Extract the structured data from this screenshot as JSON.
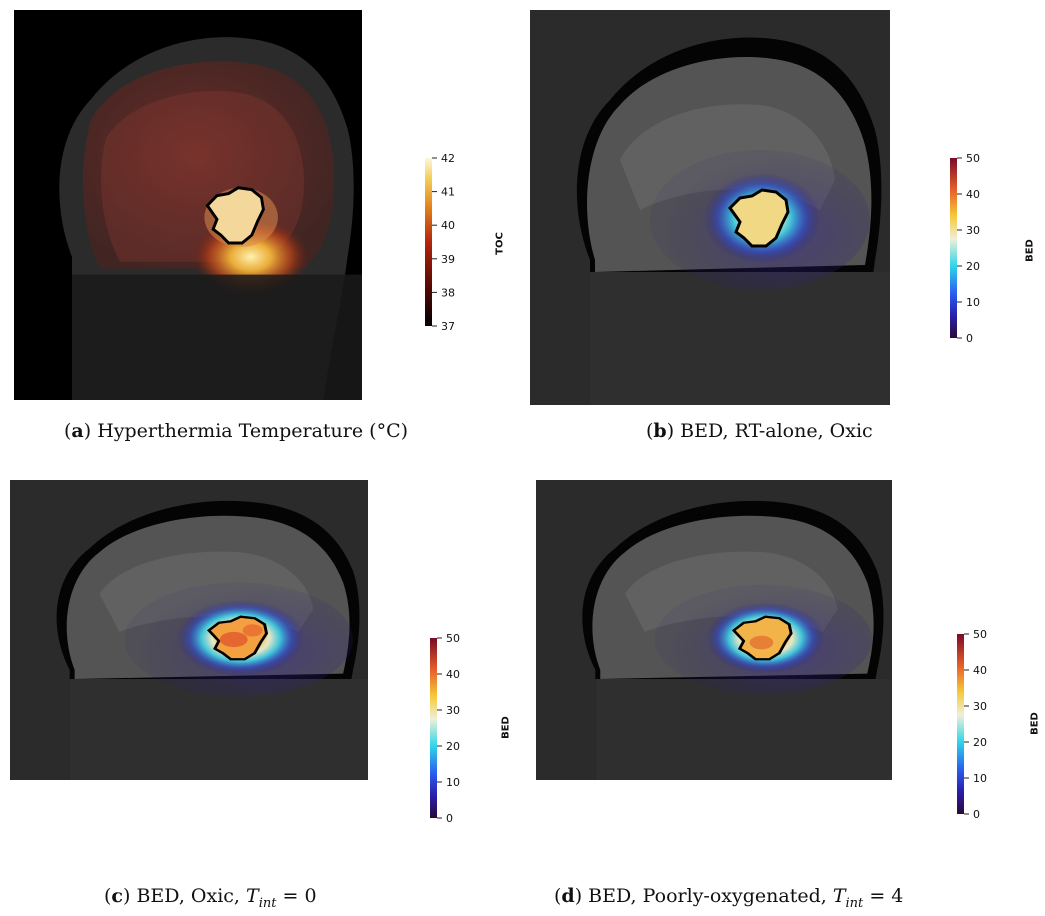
{
  "panels": [
    {
      "id": "a",
      "caption_letter": "a",
      "caption_text": "Hyperthermia Temperature (°C)",
      "colorbar": {
        "title": "TOC",
        "ticks": [
          "42",
          "41",
          "40",
          "39",
          "38",
          "37"
        ],
        "palette": "black-body",
        "range": [
          37,
          42
        ]
      },
      "background": "#000000"
    },
    {
      "id": "b",
      "caption_letter": "b",
      "caption_text": "BED, RT-alone, Oxic",
      "colorbar": {
        "title": "BED",
        "ticks": [
          "50",
          "40",
          "30",
          "20",
          "10",
          "0"
        ],
        "palette": "jet-like",
        "range": [
          0,
          50
        ]
      },
      "background": "#2b2b2b"
    },
    {
      "id": "c",
      "caption_letter": "c",
      "caption_text_pre": "BED, Oxic, ",
      "caption_math_var": "T",
      "caption_math_sub": "int",
      "caption_math_rest": " = 0",
      "colorbar": {
        "title": "BED",
        "ticks": [
          "50",
          "40",
          "30",
          "20",
          "10",
          "0"
        ],
        "palette": "jet-like",
        "range": [
          0,
          50
        ]
      },
      "background": "#2b2b2b"
    },
    {
      "id": "d",
      "caption_letter": "d",
      "caption_text_pre": "BED, Poorly-oxygenated, ",
      "caption_math_var": "T",
      "caption_math_sub": "int",
      "caption_math_rest": " = 4",
      "colorbar": {
        "title": "BED",
        "ticks": [
          "50",
          "40",
          "30",
          "20",
          "10",
          "0"
        ],
        "palette": "jet-like",
        "range": [
          0,
          50
        ]
      },
      "background": "#2b2b2b"
    }
  ]
}
